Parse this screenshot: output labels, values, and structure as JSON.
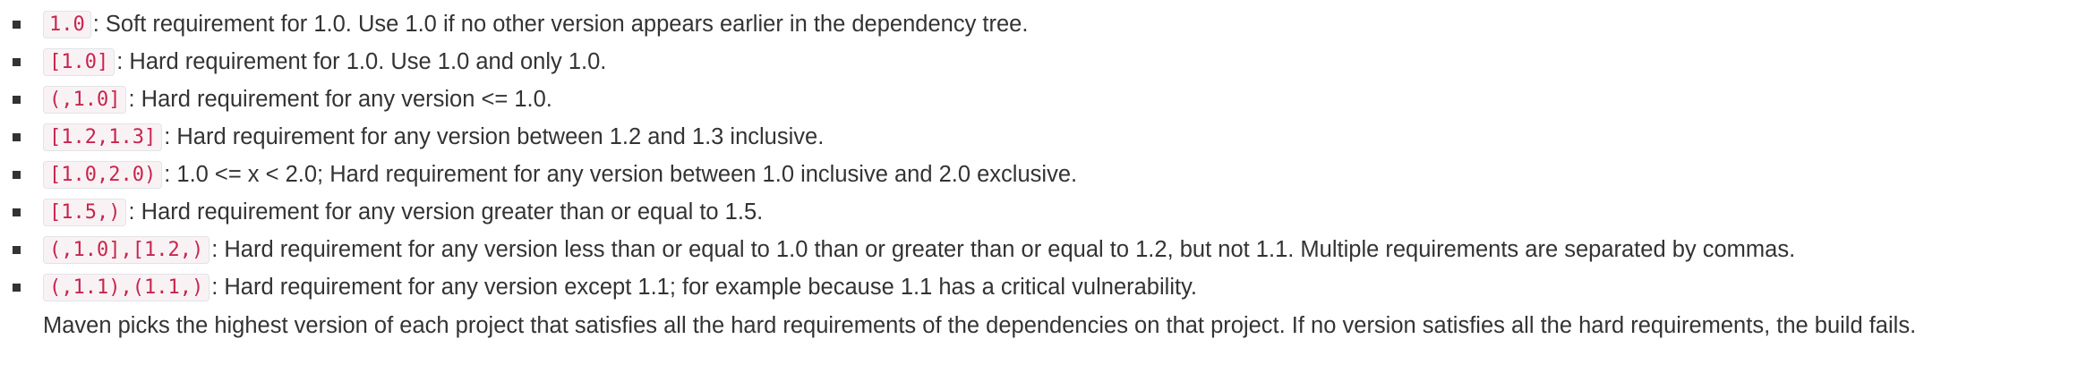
{
  "requirements": [
    {
      "code": "1.0",
      "text": ": Soft requirement for 1.0. Use 1.0 if no other version appears earlier in the dependency tree."
    },
    {
      "code": "[1.0]",
      "text": ": Hard requirement for 1.0. Use 1.0 and only 1.0."
    },
    {
      "code": "(,1.0]",
      "text": ": Hard requirement for any version <= 1.0."
    },
    {
      "code": "[1.2,1.3]",
      "text": ": Hard requirement for any version between 1.2 and 1.3 inclusive."
    },
    {
      "code": "[1.0,2.0)",
      "text": ": 1.0 <= x < 2.0; Hard requirement for any version between 1.0 inclusive and 2.0 exclusive."
    },
    {
      "code": "[1.5,)",
      "text": ": Hard requirement for any version greater than or equal to 1.5."
    },
    {
      "code": "(,1.0],[1.2,)",
      "text": ": Hard requirement for any version less than or equal to 1.0 than or greater than or equal to 1.2, but not 1.1. Multiple requirements are separated by commas."
    },
    {
      "code": "(,1.1),(1.1,)",
      "text": ": Hard requirement for any version except 1.1; for example because 1.1 has a critical vulnerability."
    }
  ],
  "note": "Maven picks the highest version of each project that satisfies all the hard requirements of the dependencies on that project. If no version satisfies all the hard requirements, the build fails.",
  "colors": {
    "text": "#333333",
    "code_text": "#c7254e",
    "code_background": "#f9f2f4",
    "code_border": "#e1e4e8"
  }
}
